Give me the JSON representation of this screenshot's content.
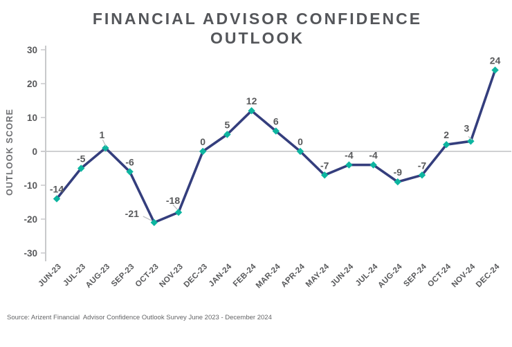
{
  "title": {
    "line1": "FINANCIAL ADVISOR CONFIDENCE",
    "line2": "OUTLOOK"
  },
  "source_note": "Source: Arizent Financial  Advisor Confidence Outlook Survey June 2023 - December 2024",
  "chart_data": {
    "type": "line",
    "title": "FINANCIAL ADVISOR CONFIDENCE OUTLOOK",
    "xlabel": "",
    "ylabel": "OUTLOOK SCORE",
    "categories": [
      "JUN-23",
      "JUL-23",
      "AUG-23",
      "SEP-23",
      "OCT-23",
      "NOV-23",
      "DEC-23",
      "JAN-24",
      "FEB-24",
      "MAR-24",
      "APR-24",
      "MAY-24",
      "JUN-24",
      "JUL-24",
      "AUG-24",
      "SEP-24",
      "OCT-24",
      "NOV-24",
      "DEC-24"
    ],
    "series": [
      {
        "name": "Outlook Score",
        "values": [
          -14,
          -5,
          1,
          -6,
          -21,
          -18,
          0,
          5,
          12,
          6,
          0,
          -7,
          -4,
          -4,
          -9,
          -7,
          2,
          3,
          24
        ]
      }
    ],
    "data_labels_shown": true,
    "ylim": [
      -30,
      30
    ],
    "yticks": [
      30,
      20,
      10,
      0,
      -10,
      -20,
      -30
    ],
    "grid": "zero-line-only",
    "legend": "none",
    "colors": {
      "line": "#343E7D",
      "marker": "#0DB5A0",
      "label_text": "#58595B",
      "axis": "#C8C9CB",
      "leader_line": "#BDBEC0",
      "background": "#FFFFFF"
    }
  }
}
